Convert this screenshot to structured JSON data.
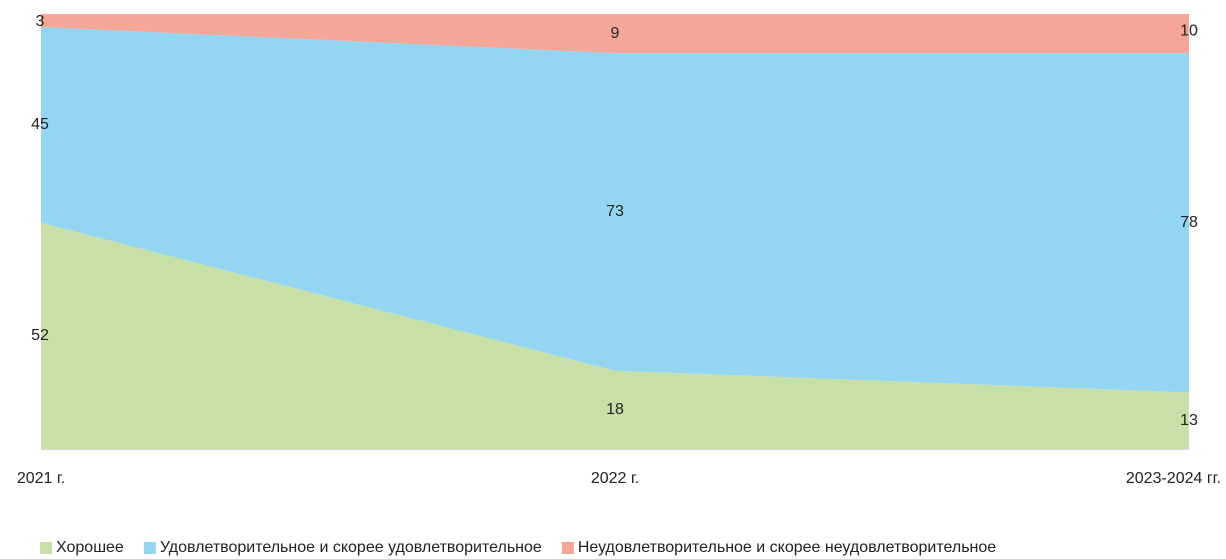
{
  "chart_data": {
    "type": "area",
    "stacked": true,
    "categories": [
      "2021 г.",
      "2022 г.",
      "2023-2024 гг."
    ],
    "series": [
      {
        "name": "Хорошее",
        "color": "#c7e0a8",
        "values": [
          52,
          18,
          13
        ]
      },
      {
        "name": "Удовлетворительное и скорее удовлетворительное",
        "color": "#94d6f1",
        "values": [
          45,
          73,
          78
        ]
      },
      {
        "name": "Неудовлетворительное и скорее неудовлетворительное",
        "color": "#f4a799",
        "values": [
          3,
          9,
          10
        ]
      }
    ],
    "ylim": [
      0,
      100
    ],
    "legend": "bottom"
  }
}
